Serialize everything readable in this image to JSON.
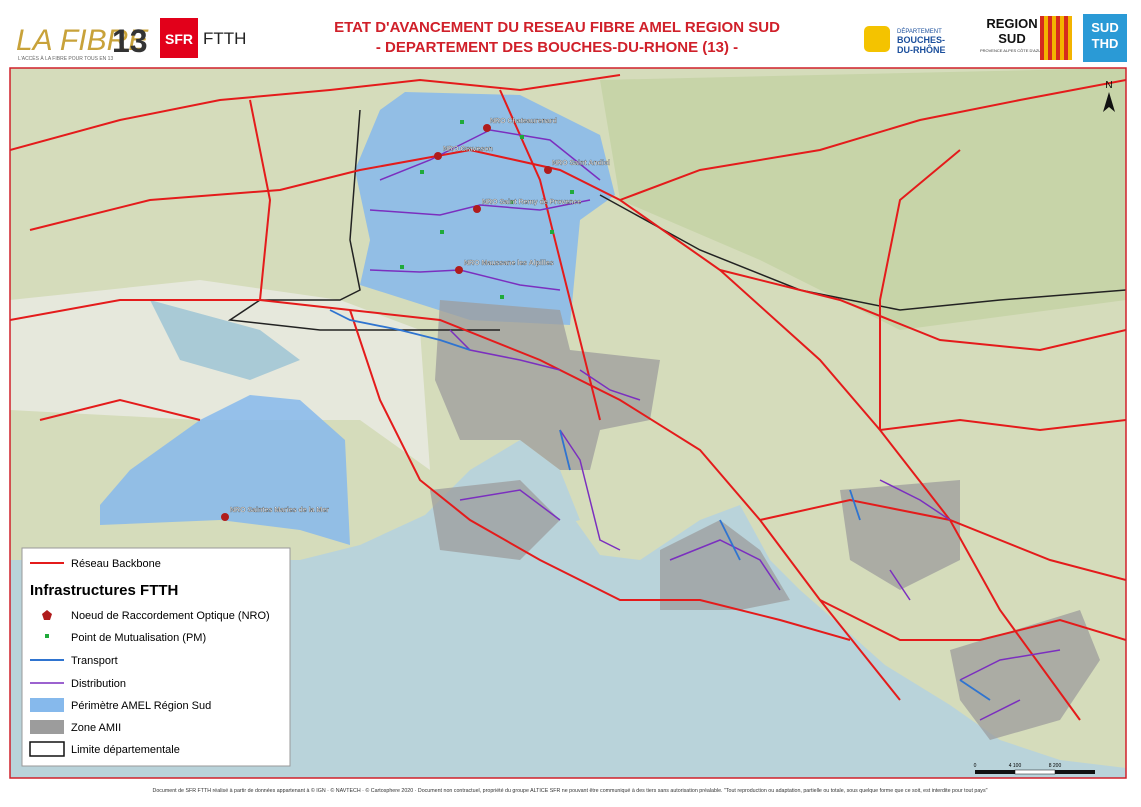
{
  "header": {
    "logo_left": "LA FIBRE",
    "logo_number": "13",
    "logo_tagline": "L'ACCÈS À LA FIBRE POUR TOUS EN 13",
    "sfr": "SFR",
    "ftth": "FTTH",
    "title_line1": "ETAT D'AVANCEMENT DU RESEAU FIBRE AMEL REGION SUD",
    "title_line2": "- DEPARTEMENT DES BOUCHES-DU-RHONE (13) -",
    "dept_top": "DÉPARTEMENT",
    "dept_name1": "BOUCHES-",
    "dept_name2": "DU-RHÔNE",
    "region": "REGION",
    "region2": "SUD",
    "region_sub": "PROVENCE ALPES CÔTE D'AZUR",
    "sud_thd1": "SUD",
    "sud_thd2": "THD"
  },
  "map": {
    "north": "N",
    "nro_labels": [
      "NRO Chateaurenard",
      "NRO Graveson",
      "NRO Saint Andiol",
      "NRO Saint Remy de Provence",
      "NRO Maussane les Alpilles",
      "NRO Saintes Maries de la Mer"
    ],
    "scale": [
      "0",
      "4 100",
      "8 200"
    ]
  },
  "legend": {
    "backbone": "Réseau Backbone",
    "section": "Infrastructures FTTH",
    "items": [
      "Noeud de Raccordement Optique (NRO)",
      "Point de Mutualisation (PM)",
      "Transport",
      "Distribution",
      "Périmètre AMEL Région Sud",
      "Zone AMII",
      "Limite départementale"
    ]
  },
  "footer": "Document de SFR FTTH réalisé à partir de données appartenant à © IGN · © NAVTECH · © Cartosphere 2020 · Document non contractuel, propriété du groupe ALTICE SFR ne pouvant être communiqué à des tiers sans autorisation préalable. \"Tout reproduction ou adaptation, partielle ou totale, sous quelque forme que ce soit, est interdite pour tout pays\""
}
